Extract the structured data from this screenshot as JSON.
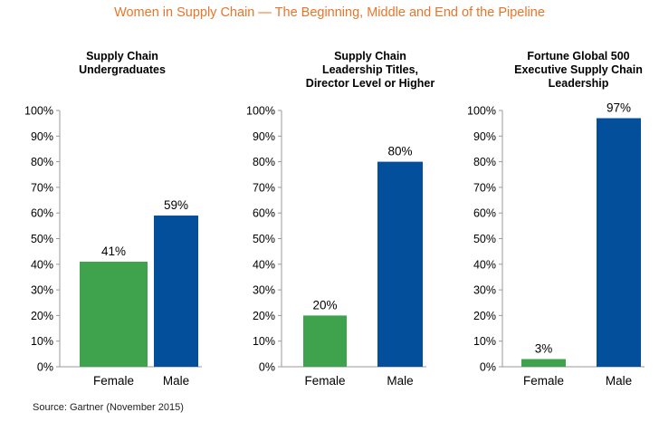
{
  "title": "Women in Supply Chain — The Beginning, Middle and End of the Pipeline",
  "source": "Source: Gartner (November 2015)",
  "colors": {
    "title": "#e8752a",
    "female": "#3fa34d",
    "male": "#044f9b",
    "axis": "#999999"
  },
  "chart_data": [
    {
      "type": "bar",
      "title_lines": [
        "Supply Chain",
        "Undergraduates"
      ],
      "categories": [
        "Female",
        "Male"
      ],
      "values": [
        41,
        59
      ],
      "value_labels": [
        "41%",
        "59%"
      ],
      "ylim": [
        0,
        100
      ],
      "yticks": [
        "0%",
        "10%",
        "20%",
        "30%",
        "40%",
        "50%",
        "60%",
        "70%",
        "80%",
        "90%",
        "100%"
      ],
      "grid": false
    },
    {
      "type": "bar",
      "title_lines": [
        "Supply Chain",
        "Leadership Titles,",
        "Director Level or Higher"
      ],
      "categories": [
        "Female",
        "Male"
      ],
      "values": [
        20,
        80
      ],
      "value_labels": [
        "20%",
        "80%"
      ],
      "ylim": [
        0,
        100
      ],
      "yticks": [
        "0%",
        "10%",
        "20%",
        "30%",
        "40%",
        "50%",
        "60%",
        "70%",
        "80%",
        "90%",
        "100%"
      ],
      "grid": false
    },
    {
      "type": "bar",
      "title_lines": [
        "Fortune Global 500",
        "Executive Supply Chain",
        "Leadership"
      ],
      "categories": [
        "Female",
        "Male"
      ],
      "values": [
        3,
        97
      ],
      "value_labels": [
        "3%",
        "97%"
      ],
      "ylim": [
        0,
        100
      ],
      "yticks": [
        "0%",
        "10%",
        "20%",
        "30%",
        "40%",
        "50%",
        "60%",
        "70%",
        "80%",
        "90%",
        "100%"
      ],
      "grid": false
    }
  ]
}
